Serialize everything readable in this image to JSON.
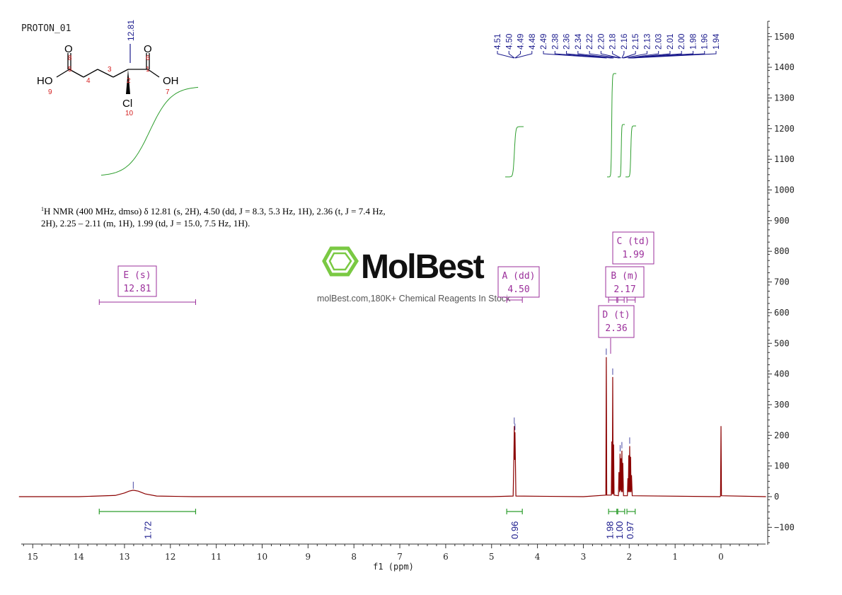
{
  "chart_data": {
    "type": "line",
    "title": "PROTON_01",
    "xlabel": "f1 (ppm)",
    "ylabel": "",
    "x_reversed": true,
    "xlim": [
      15.3,
      -0.98
    ],
    "ylim": [
      -150,
      1550
    ],
    "x_ticks": [
      15,
      14,
      13,
      12,
      11,
      10,
      9,
      8,
      7,
      6,
      5,
      4,
      3,
      2,
      1,
      0
    ],
    "y_ticks": [
      1500,
      1400,
      1300,
      1200,
      1100,
      1000,
      900,
      800,
      700,
      600,
      500,
      400,
      300,
      200,
      100,
      0,
      -100
    ],
    "y_axis_side": "right",
    "grid": false,
    "spectrum_color": "#8b0000",
    "integral_color": "#2e9e2e",
    "peak_label_color": "#1a1a8c",
    "multiplet_color": "#9b2f9b",
    "series": [
      {
        "points": [
          [
            15.3,
            0
          ],
          [
            14.0,
            0
          ],
          [
            13.2,
            4
          ],
          [
            13.0,
            12
          ],
          [
            12.9,
            18
          ],
          [
            12.81,
            21
          ],
          [
            12.7,
            18
          ],
          [
            12.55,
            9
          ],
          [
            12.3,
            2
          ],
          [
            11.5,
            0
          ],
          [
            5.0,
            0
          ],
          [
            4.53,
            2
          ],
          [
            4.515,
            120
          ],
          [
            4.505,
            230
          ],
          [
            4.495,
            120
          ],
          [
            4.49,
            210
          ],
          [
            4.48,
            110
          ],
          [
            4.47,
            2
          ],
          [
            3.0,
            0
          ],
          [
            2.51,
            5
          ],
          [
            2.5,
            455
          ],
          [
            2.49,
            5
          ],
          [
            2.39,
            5
          ],
          [
            2.38,
            180
          ],
          [
            2.37,
            8
          ],
          [
            2.36,
            390
          ],
          [
            2.35,
            8
          ],
          [
            2.34,
            170
          ],
          [
            2.33,
            5
          ],
          [
            2.235,
            3
          ],
          [
            2.225,
            80
          ],
          [
            2.21,
            15
          ],
          [
            2.2,
            140
          ],
          [
            2.19,
            20
          ],
          [
            2.18,
            125
          ],
          [
            2.17,
            15
          ],
          [
            2.16,
            150
          ],
          [
            2.15,
            15
          ],
          [
            2.14,
            110
          ],
          [
            2.125,
            3
          ],
          [
            2.04,
            3
          ],
          [
            2.03,
            60
          ],
          [
            2.02,
            15
          ],
          [
            2.01,
            135
          ],
          [
            2.0,
            15
          ],
          [
            1.99,
            165
          ],
          [
            1.98,
            15
          ],
          [
            1.97,
            130
          ],
          [
            1.96,
            15
          ],
          [
            1.95,
            70
          ],
          [
            1.935,
            3
          ],
          [
            0.02,
            0
          ],
          [
            0.01,
            3
          ],
          [
            0.0,
            230
          ],
          [
            -0.01,
            3
          ],
          [
            -0.98,
            0
          ]
        ]
      }
    ],
    "peak_labels": [
      "4.51",
      "4.50",
      "4.49",
      "4.48",
      "2.49",
      "2.38",
      "2.36",
      "2.34",
      "2.22",
      "2.20",
      "2.18",
      "2.16",
      "2.15",
      "2.13",
      "2.03",
      "2.01",
      "2.00",
      "1.98",
      "1.96",
      "1.94"
    ],
    "peak_top_labels": [
      "12.81"
    ],
    "integrals": [
      {
        "value": "1.72",
        "from": 13.55,
        "to": 11.45,
        "label_ppm": 12.5
      },
      {
        "value": "0.96",
        "from": 4.67,
        "to": 4.33,
        "label_ppm": 4.5
      },
      {
        "value": "1.98",
        "from": 2.45,
        "to": 2.27,
        "label_ppm": 2.43
      },
      {
        "value": "1.00",
        "from": 2.25,
        "to": 2.1,
        "label_ppm": 2.22
      },
      {
        "value": "0.97",
        "from": 2.05,
        "to": 1.87,
        "label_ppm": 1.99
      }
    ],
    "multiplets": [
      {
        "name": "E (s)",
        "shift": "12.81",
        "from": 13.55,
        "to": 11.45
      },
      {
        "name": "A (dd)",
        "shift": "4.50",
        "from": 4.67,
        "to": 4.33
      },
      {
        "name": "B (m)",
        "shift": "2.17",
        "from": 2.25,
        "to": 2.11
      },
      {
        "name": "C (td)",
        "shift": "1.99",
        "from": 2.05,
        "to": 1.87
      },
      {
        "name": "D (t)",
        "shift": "2.36",
        "from": 2.45,
        "to": 2.27
      }
    ]
  },
  "nmr_text": {
    "sup": "1",
    "line1": "H NMR (400 MHz, dmso) δ 12.81 (s, 2H), 4.50 (dd, J = 8.3, 5.3 Hz, 1H), 2.36 (t, J = 7.4 Hz,",
    "line2": "2H), 2.25 – 2.11 (m, 1H), 1.99 (td, J = 15.0, 7.5 Hz, 1H)."
  },
  "molecule": {
    "atoms": [
      "O",
      "O",
      "HO",
      "OH",
      "Cl"
    ],
    "atom_numbers": [
      "8",
      "6",
      "5",
      "3",
      "1",
      "4",
      "2",
      "9",
      "7",
      "10"
    ]
  },
  "watermark": {
    "logo_text": "MolBest",
    "tagline": "molBest.com,180K+ Chemical Reagents In Stock"
  }
}
